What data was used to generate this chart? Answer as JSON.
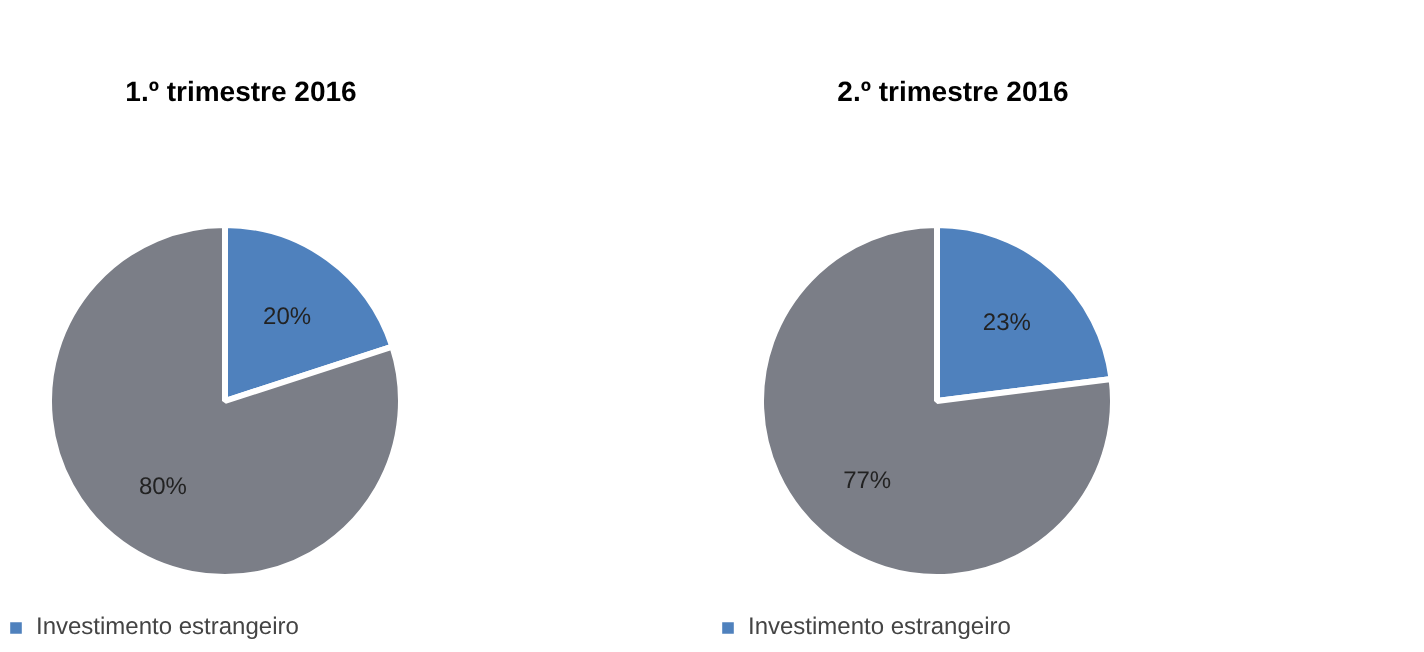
{
  "chart_data": [
    {
      "type": "pie",
      "title": "1.º trimestre 2016",
      "categories": [
        "Investimento estrangeiro",
        null
      ],
      "values": [
        20,
        80
      ],
      "colors": [
        "#4f81bd",
        "#7b7e87"
      ],
      "value_labels": [
        "20%",
        "80%"
      ],
      "legend": "bottom"
    },
    {
      "type": "pie",
      "title": "2.º trimestre 2016",
      "categories": [
        "Investimento estrangeiro",
        null
      ],
      "values": [
        23,
        77
      ],
      "colors": [
        "#4f81bd",
        "#7b7e87"
      ],
      "value_labels": [
        "23%",
        "77%"
      ],
      "legend": "bottom"
    }
  ]
}
